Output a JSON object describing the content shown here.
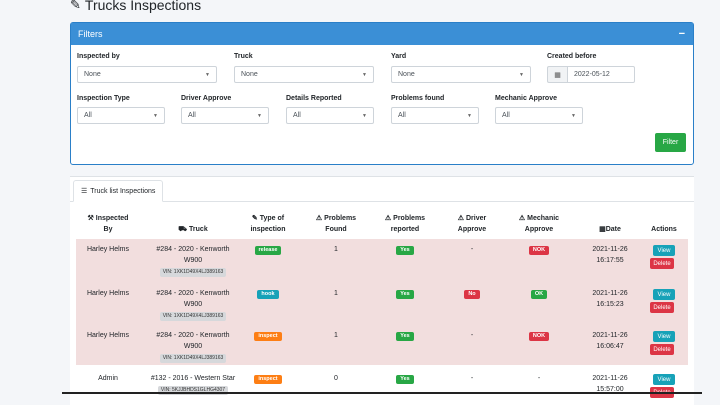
{
  "page_title": "Trucks Inspections",
  "filters": {
    "header": "Filters",
    "collapse": "−",
    "fields": {
      "inspected_by": {
        "label": "Inspected by",
        "value": "None"
      },
      "truck": {
        "label": "Truck",
        "value": "None"
      },
      "yard": {
        "label": "Yard",
        "value": "None"
      },
      "created_before": {
        "label": "Created before",
        "value": "2022-05-12"
      },
      "inspection_type": {
        "label": "Inspection Type",
        "value": "All"
      },
      "driver_approve": {
        "label": "Driver Approve",
        "value": "All"
      },
      "details_reported": {
        "label": "Details Reported",
        "value": "All"
      },
      "problems_found": {
        "label": "Problems found",
        "value": "All"
      },
      "mechanic_approve": {
        "label": "Mechanic Approve",
        "value": "All"
      }
    },
    "filter_button": "Filter"
  },
  "list": {
    "tab_label": "Truck list Inspections",
    "columns": {
      "inspected_by": [
        "Inspected",
        "By"
      ],
      "truck": "Truck",
      "type": [
        "Type of",
        "inspection"
      ],
      "problems_found": [
        "Problems",
        "Found"
      ],
      "problems_reported": [
        "Problems",
        "reported"
      ],
      "driver_approve": [
        "Driver",
        "Approve"
      ],
      "mechanic_approve": [
        "Mechanic",
        "Approve"
      ],
      "date": "Date",
      "actions": "Actions"
    },
    "rows": [
      {
        "inspected_by": "Harley Helms",
        "truck_l1": "#284 - 2020 - Kenworth",
        "truck_l2": "W900",
        "vin": "VIN: 1XK1D49X4LJ389163",
        "type": "release",
        "type_color": "#28a745",
        "problems_found": "1",
        "reported": "Yes",
        "reported_color": "#28a745",
        "driver": "-",
        "driver_color": "",
        "mechanic": "NOK",
        "mechanic_color": "#dc3545",
        "date": "2021-11-26",
        "time": "16:17:55"
      },
      {
        "inspected_by": "Harley Helms",
        "truck_l1": "#284 - 2020 - Kenworth",
        "truck_l2": "W900",
        "vin": "VIN: 1XK1D49X4LJ389163",
        "type": "hook",
        "type_color": "#17a2b8",
        "problems_found": "1",
        "reported": "Yes",
        "reported_color": "#28a745",
        "driver": "No",
        "driver_color": "#dc3545",
        "mechanic": "OK",
        "mechanic_color": "#28a745",
        "date": "2021-11-26",
        "time": "16:15:23"
      },
      {
        "inspected_by": "Harley Helms",
        "truck_l1": "#284 - 2020 - Kenworth",
        "truck_l2": "W900",
        "vin": "VIN: 1XK1D49X4LJ389163",
        "type": "inspect",
        "type_color": "#fd7e14",
        "problems_found": "1",
        "reported": "Yes",
        "reported_color": "#28a745",
        "driver": "-",
        "driver_color": "",
        "mechanic": "NOK",
        "mechanic_color": "#dc3545",
        "date": "2021-11-26",
        "time": "16:06:47"
      },
      {
        "inspected_by": "Admin",
        "truck_l1": "#132 - 2016 - Western Star",
        "truck_l2": "",
        "vin": "VIN: 5KJJBHDS1GLHG4307",
        "type": "inspect",
        "type_color": "#fd7e14",
        "problems_found": "0",
        "reported": "Yes",
        "reported_color": "#28a745",
        "driver": "-",
        "driver_color": "",
        "mechanic": "-",
        "mechanic_color": "",
        "date": "2021-11-26",
        "time": "15:57:00"
      }
    ],
    "view_label": "View",
    "delete_label": "Delete"
  }
}
